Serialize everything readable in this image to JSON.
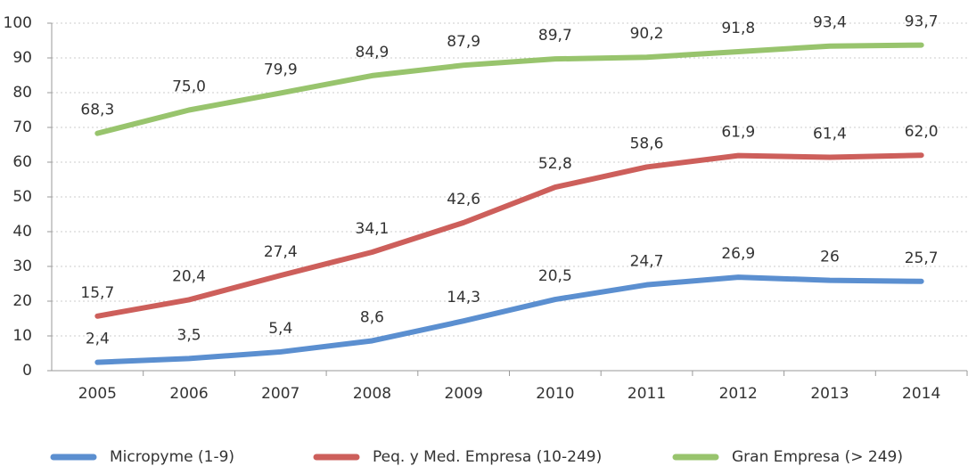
{
  "chart_data": {
    "type": "line",
    "categories": [
      "2005",
      "2006",
      "2007",
      "2008",
      "2009",
      "2010",
      "2011",
      "2012",
      "2013",
      "2014"
    ],
    "series": [
      {
        "name": "Micropyme (1-9)",
        "color": "#5b8fd0",
        "values": [
          2.4,
          3.5,
          5.4,
          8.6,
          14.3,
          20.5,
          24.7,
          26.9,
          26,
          25.7
        ],
        "value_labels": [
          "2,4",
          "3,5",
          "5,4",
          "8,6",
          "14,3",
          "20,5",
          "24,7",
          "26,9",
          "26",
          "25,7"
        ]
      },
      {
        "name": "Peq. y Med. Empresa (10-249)",
        "color": "#cd5f5b",
        "values": [
          15.7,
          20.4,
          27.4,
          34.1,
          42.6,
          52.8,
          58.6,
          61.9,
          61.4,
          62.0
        ],
        "value_labels": [
          "15,7",
          "20,4",
          "27,4",
          "34,1",
          "42,6",
          "52,8",
          "58,6",
          "61,9",
          "61,4",
          "62,0"
        ]
      },
      {
        "name": "Gran Empresa (> 249)",
        "color": "#98c46d",
        "values": [
          68.3,
          75.0,
          79.9,
          84.9,
          87.9,
          89.7,
          90.2,
          91.8,
          93.4,
          93.7
        ],
        "value_labels": [
          "68,3",
          "75,0",
          "79,9",
          "84,9",
          "87,9",
          "89,7",
          "90,2",
          "91,8",
          "93,4",
          "93,7"
        ]
      }
    ],
    "ylim": [
      0,
      100
    ],
    "yticks": [
      0,
      10,
      20,
      30,
      40,
      50,
      60,
      70,
      80,
      90,
      100
    ],
    "grid": true,
    "legend": "bottom"
  }
}
